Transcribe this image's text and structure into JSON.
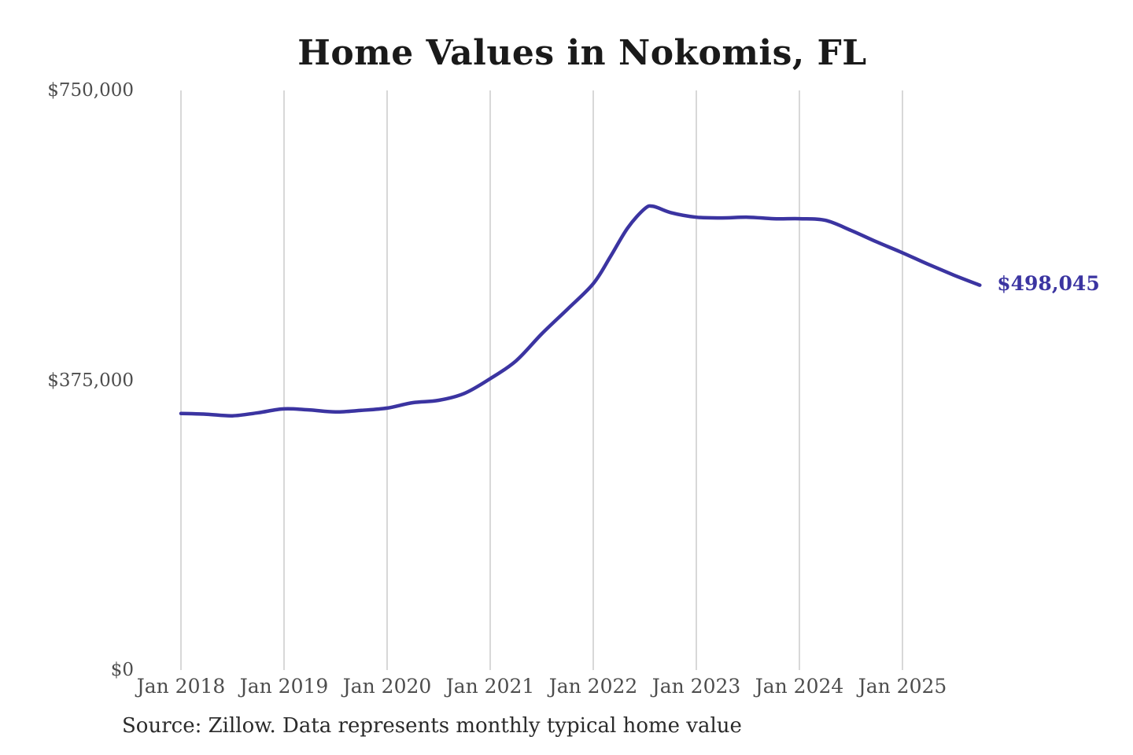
{
  "page": {
    "background": "#ffffff"
  },
  "chart_data": {
    "type": "line",
    "title": "Home Values in Nokomis, FL",
    "source_note": "Source: Zillow. Data represents monthly typical home value",
    "end_label": "$498,045",
    "latest_value": 498045,
    "xlabel": "",
    "ylabel": "",
    "ylim": [
      0,
      750000
    ],
    "grid": "vertical-only",
    "legend": "none",
    "x_ticks": [
      "Jan 2018",
      "Jan 2019",
      "Jan 2020",
      "Jan 2021",
      "Jan 2022",
      "Jan 2023",
      "Jan 2024",
      "Jan 2025"
    ],
    "y_ticks": [
      {
        "label": "$0",
        "value": 0
      },
      {
        "label": "$375,000",
        "value": 375000
      },
      {
        "label": "$750,000",
        "value": 750000
      }
    ],
    "series": [
      {
        "name": "Typical home value (monthly)",
        "dates": [
          "2018-01",
          "2018-04",
          "2018-07",
          "2018-10",
          "2019-01",
          "2019-04",
          "2019-07",
          "2019-10",
          "2020-01",
          "2020-04",
          "2020-07",
          "2020-10",
          "2021-01",
          "2021-04",
          "2021-07",
          "2021-10",
          "2022-01",
          "2022-03",
          "2022-05",
          "2022-07",
          "2022-08",
          "2022-10",
          "2023-01",
          "2023-04",
          "2023-07",
          "2023-10",
          "2024-01",
          "2024-04",
          "2024-07",
          "2024-10",
          "2025-01",
          "2025-04",
          "2025-07",
          "2025-10"
        ],
        "values": [
          332000,
          331000,
          329000,
          333000,
          338000,
          336500,
          334000,
          336000,
          339000,
          346000,
          349000,
          358000,
          377000,
          400000,
          435000,
          467000,
          500000,
          535000,
          572000,
          597000,
          600000,
          592000,
          586000,
          585000,
          586000,
          584000,
          584000,
          582000,
          569000,
          554000,
          540000,
          525000,
          511000,
          498045
        ]
      }
    ],
    "colors": {
      "line": "#3b34a1",
      "grid": "#cccccc",
      "title_text": "#1a1a1a",
      "axis_text": "#4d4d4d",
      "source_text": "#2b2b2b",
      "end_label_text": "#3b34a1"
    }
  }
}
